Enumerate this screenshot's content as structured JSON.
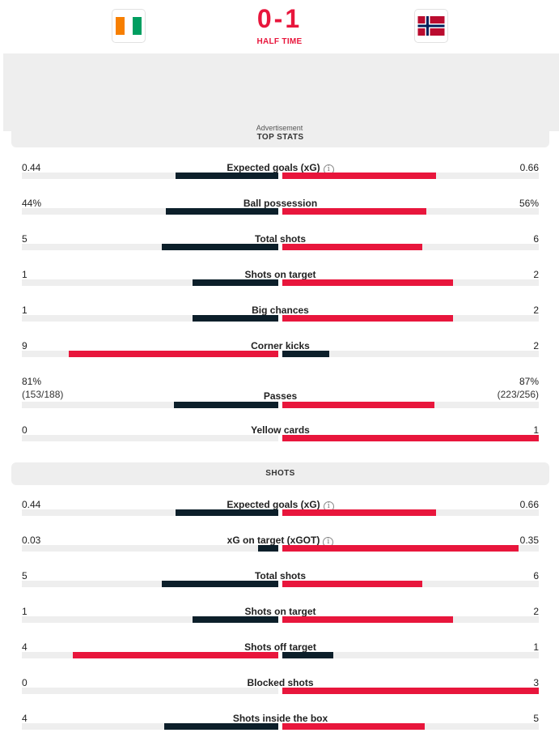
{
  "match": {
    "score": "0-1",
    "status": "HALF TIME",
    "home_flag": "ivory-coast-flag",
    "away_flag": "norway-flag"
  },
  "advertisement_label": "Advertisement",
  "colors": {
    "home": "#0c1f2a",
    "away": "#e8163c",
    "track": "#eeeeee",
    "accent": "#e8163c"
  },
  "top_stats": {
    "title": "TOP STATS",
    "rows": [
      {
        "label": "Expected goals (xG)",
        "home": "0.44",
        "away": "0.66",
        "home_value": 0.44,
        "away_value": 0.66,
        "info": true
      },
      {
        "label": "Ball possession",
        "home": "44%",
        "away": "56%",
        "home_value": 44,
        "away_value": 56
      },
      {
        "label": "Total shots",
        "home": "5",
        "away": "6",
        "home_value": 5,
        "away_value": 6
      },
      {
        "label": "Shots on target",
        "home": "1",
        "away": "2",
        "home_value": 1,
        "away_value": 2
      },
      {
        "label": "Big chances",
        "home": "1",
        "away": "2",
        "home_value": 1,
        "away_value": 2
      },
      {
        "label": "Corner kicks",
        "home": "9",
        "away": "2",
        "home_value": 9,
        "away_value": 2
      },
      {
        "label": "Passes",
        "home": "81%",
        "away": "87%",
        "home_sub": "(153/188)",
        "away_sub": "(223/256)",
        "home_value": 153,
        "away_value": 223
      },
      {
        "label": "Yellow cards",
        "home": "0",
        "away": "1",
        "home_value": 0,
        "away_value": 1
      }
    ]
  },
  "shots": {
    "title": "SHOTS",
    "rows": [
      {
        "label": "Expected goals (xG)",
        "home": "0.44",
        "away": "0.66",
        "home_value": 0.44,
        "away_value": 0.66,
        "info": true
      },
      {
        "label": "xG on target (xGOT)",
        "home": "0.03",
        "away": "0.35",
        "home_value": 0.03,
        "away_value": 0.35,
        "info": true
      },
      {
        "label": "Total shots",
        "home": "5",
        "away": "6",
        "home_value": 5,
        "away_value": 6
      },
      {
        "label": "Shots on target",
        "home": "1",
        "away": "2",
        "home_value": 1,
        "away_value": 2
      },
      {
        "label": "Shots off target",
        "home": "4",
        "away": "1",
        "home_value": 4,
        "away_value": 1
      },
      {
        "label": "Blocked shots",
        "home": "0",
        "away": "3",
        "home_value": 0,
        "away_value": 3
      },
      {
        "label": "Shots inside the box",
        "home": "4",
        "away": "5",
        "home_value": 4,
        "away_value": 5
      }
    ]
  }
}
